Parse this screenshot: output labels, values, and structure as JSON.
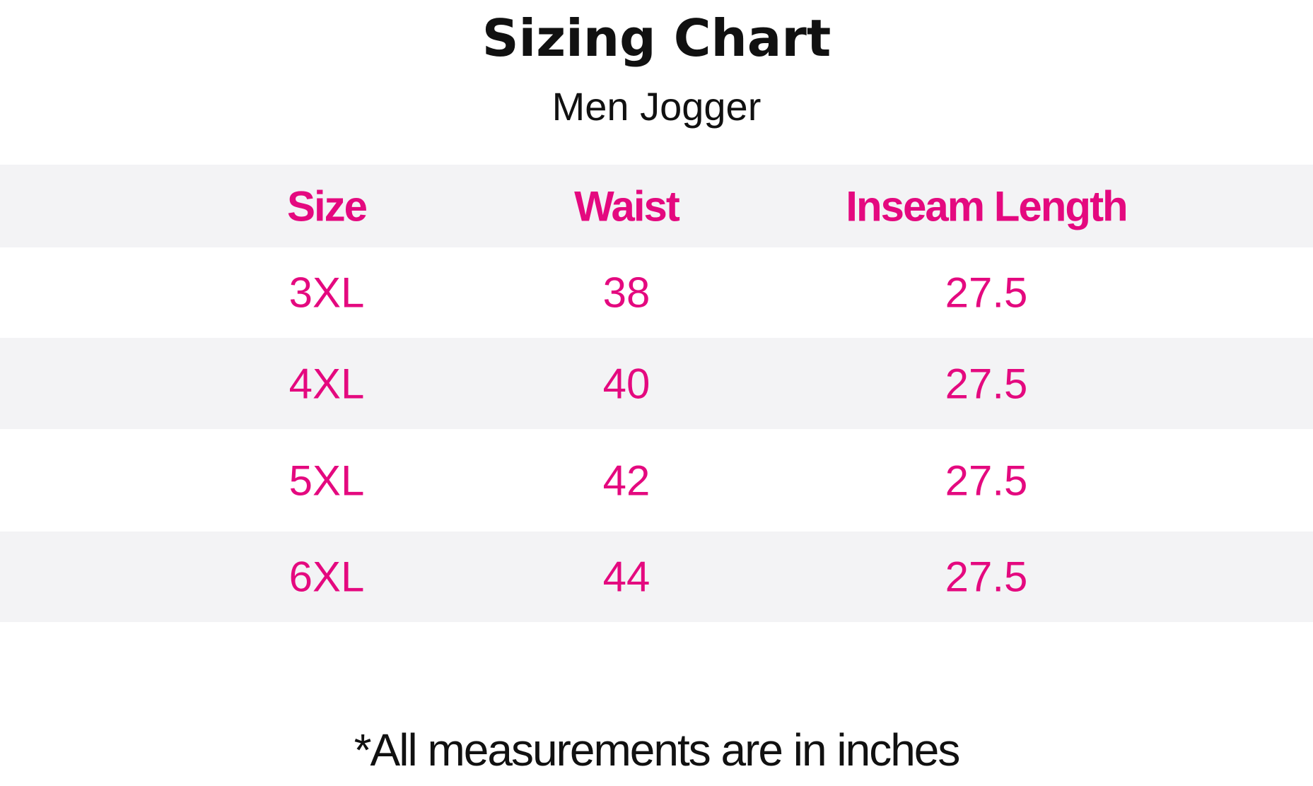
{
  "header": {
    "title": "Sizing Chart",
    "subtitle": "Men Jogger"
  },
  "table": {
    "columns": [
      "Size",
      "Waist",
      "Inseam Length"
    ],
    "rows": [
      [
        "3XL",
        "38",
        "27.5"
      ],
      [
        "4XL",
        "40",
        "27.5"
      ],
      [
        "5XL",
        "42",
        "27.5"
      ],
      [
        "6XL",
        "44",
        "27.5"
      ]
    ]
  },
  "footnote": "*All measurements are in inches"
}
